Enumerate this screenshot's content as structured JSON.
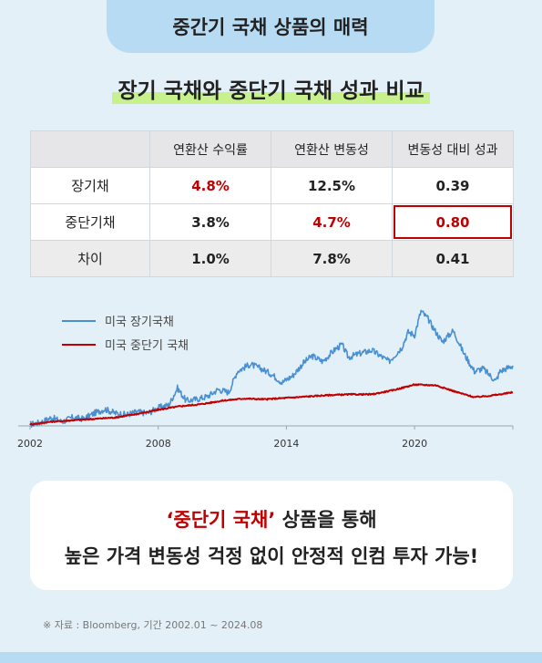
{
  "header": {
    "tab_label": "중간기 국채 상품의 매력"
  },
  "title": "장기 국채와 중단기 국채 성과 비교",
  "table": {
    "columns": [
      "",
      "연환산 수익률",
      "연환산 변동성",
      "변동성 대비 성과"
    ],
    "rows": [
      {
        "label": "장기채",
        "values": [
          "4.8%",
          "12.5%",
          "0.39"
        ]
      },
      {
        "label": "중단기채",
        "values": [
          "3.8%",
          "4.7%",
          "0.80"
        ]
      },
      {
        "label": "차이",
        "values": [
          "1.0%",
          "7.8%",
          "0.41"
        ]
      }
    ],
    "highlight_color": "#c00000"
  },
  "chart_data": {
    "type": "line",
    "x_ticks": [
      "2002",
      "2008",
      "2014",
      "2020"
    ],
    "xlim": [
      2002,
      2024.6
    ],
    "grid": false,
    "legend_position": "top-left",
    "series": [
      {
        "name": "미국 장기국채",
        "color": "#4a90d0",
        "points": [
          [
            2002.0,
            100
          ],
          [
            2002.5,
            103
          ],
          [
            2003.0,
            110
          ],
          [
            2003.5,
            104
          ],
          [
            2004.0,
            110
          ],
          [
            2004.5,
            108
          ],
          [
            2005.0,
            116
          ],
          [
            2005.5,
            122
          ],
          [
            2006.0,
            116
          ],
          [
            2006.5,
            114
          ],
          [
            2007.0,
            118
          ],
          [
            2007.5,
            116
          ],
          [
            2008.0,
            124
          ],
          [
            2008.5,
            128
          ],
          [
            2008.9,
            152
          ],
          [
            2009.3,
            134
          ],
          [
            2009.8,
            136
          ],
          [
            2010.3,
            140
          ],
          [
            2010.8,
            150
          ],
          [
            2011.3,
            146
          ],
          [
            2011.7,
            176
          ],
          [
            2012.3,
            186
          ],
          [
            2012.8,
            180
          ],
          [
            2013.3,
            172
          ],
          [
            2013.8,
            160
          ],
          [
            2014.3,
            170
          ],
          [
            2014.8,
            188
          ],
          [
            2015.2,
            198
          ],
          [
            2015.7,
            190
          ],
          [
            2016.3,
            208
          ],
          [
            2016.6,
            214
          ],
          [
            2016.9,
            196
          ],
          [
            2017.5,
            202
          ],
          [
            2018.0,
            206
          ],
          [
            2018.8,
            190
          ],
          [
            2019.4,
            210
          ],
          [
            2019.7,
            232
          ],
          [
            2020.0,
            228
          ],
          [
            2020.3,
            262
          ],
          [
            2020.6,
            252
          ],
          [
            2021.0,
            232
          ],
          [
            2021.3,
            218
          ],
          [
            2021.8,
            234
          ],
          [
            2022.0,
            222
          ],
          [
            2022.3,
            202
          ],
          [
            2022.8,
            176
          ],
          [
            2023.2,
            180
          ],
          [
            2023.8,
            162
          ],
          [
            2024.0,
            176
          ],
          [
            2024.6,
            184
          ]
        ]
      },
      {
        "name": "미국 중단기 국채",
        "color": "#c00000",
        "points": [
          [
            2002.0,
            100
          ],
          [
            2003.0,
            104
          ],
          [
            2004.0,
            106
          ],
          [
            2005.0,
            108
          ],
          [
            2006.0,
            110
          ],
          [
            2007.0,
            115
          ],
          [
            2008.0,
            121
          ],
          [
            2009.0,
            126
          ],
          [
            2010.0,
            129
          ],
          [
            2011.0,
            134
          ],
          [
            2012.0,
            137
          ],
          [
            2013.0,
            136
          ],
          [
            2014.0,
            138
          ],
          [
            2015.0,
            140
          ],
          [
            2016.0,
            142
          ],
          [
            2017.0,
            143
          ],
          [
            2018.0,
            143
          ],
          [
            2019.0,
            149
          ],
          [
            2020.0,
            157
          ],
          [
            2021.0,
            156
          ],
          [
            2022.0,
            146
          ],
          [
            2022.8,
            139
          ],
          [
            2023.5,
            141
          ],
          [
            2024.0,
            143
          ],
          [
            2024.6,
            146
          ]
        ]
      }
    ]
  },
  "callout": {
    "line1_em": "‘중단기 국채’",
    "line1_rest": " 상품을 통해",
    "line2": "높은 가격 변동성 걱정 없이 안정적 인컴 투자 가능!"
  },
  "source": "※ 자료 : Bloomberg, 기간 2002.01 ~ 2024.08"
}
